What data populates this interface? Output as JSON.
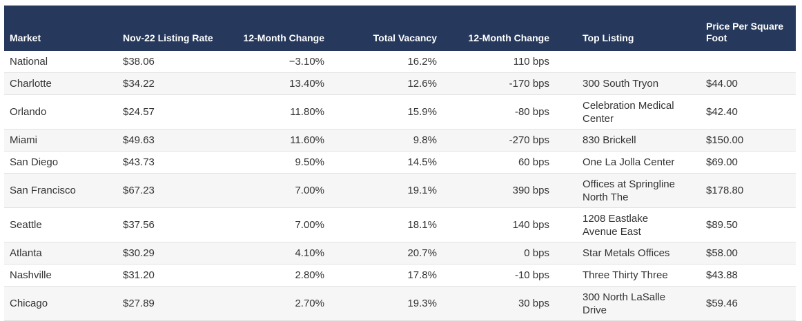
{
  "table": {
    "columns": [
      "Market",
      "Nov-22 Listing Rate",
      "12-Month Change",
      "Total Vacancy",
      "12-Month Change",
      "Top Listing",
      "Price Per Square Foot"
    ],
    "rows": [
      [
        "National",
        "$38.06",
        "−3.10%",
        "16.2%",
        "110 bps",
        null,
        null
      ],
      [
        "Charlotte",
        "$34.22",
        "13.40%",
        "12.6%",
        "-170 bps",
        "300 South Tryon",
        "$44.00"
      ],
      [
        "Orlando",
        "$24.57",
        "11.80%",
        "15.9%",
        "-80 bps",
        "Celebration Medical Center",
        "$42.40"
      ],
      [
        "Miami",
        "$49.63",
        "11.60%",
        "9.8%",
        "-270 bps",
        "830 Brickell",
        "$150.00"
      ],
      [
        "San Diego",
        "$43.73",
        "9.50%",
        "14.5%",
        "60 bps",
        "One La Jolla Center",
        "$69.00"
      ],
      [
        "San Francisco",
        "$67.23",
        "7.00%",
        "19.1%",
        "390 bps",
        "Offices at Springline North The",
        "$178.80"
      ],
      [
        "Seattle",
        "$37.56",
        "7.00%",
        "18.1%",
        "140 bps",
        "1208 Eastlake Avenue East",
        "$89.50"
      ],
      [
        "Atlanta",
        "$30.29",
        "4.10%",
        "20.7%",
        "0 bps",
        "Star Metals Offices",
        "$58.00"
      ],
      [
        "Nashville",
        "$31.20",
        "2.80%",
        "17.8%",
        "-10 bps",
        "Three Thirty Three",
        "$43.88"
      ],
      [
        "Chicago",
        "$27.89",
        "2.70%",
        "19.3%",
        "30 bps",
        "300 North LaSalle Drive",
        "$59.46"
      ]
    ]
  }
}
